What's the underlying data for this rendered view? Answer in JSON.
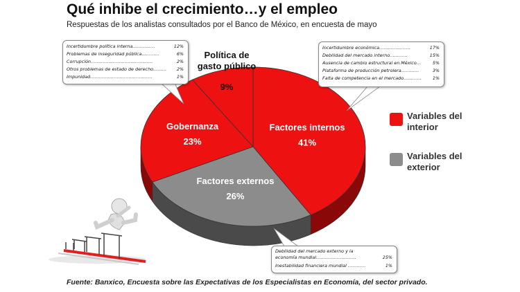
{
  "title": "Qué inhibe el crecimiento…y el empleo",
  "subtitle": "Respuestas de los analistas consultados por el Banco de México, en encuesta de mayo",
  "source": "Fuente: Banxico, Encuesta sobre las Expectativas de los Especialistas en Economía, del sector privado.",
  "colors": {
    "interior": "#ee1111",
    "interior_dark": "#8a0808",
    "exterior": "#8c8c8c",
    "exterior_dark": "#4a4a4a"
  },
  "chart_data": {
    "type": "pie",
    "slices": [
      {
        "label": "Factores internos",
        "value": 41,
        "display": "41%",
        "group": "interior"
      },
      {
        "label": "Factores externos",
        "value": 26,
        "display": "26%",
        "group": "exterior"
      },
      {
        "label": "Gobernanza",
        "value": 23,
        "display": "23%",
        "group": "interior"
      },
      {
        "label": "Política de gasto público",
        "value": 9,
        "display": "9%",
        "group": "interior"
      }
    ],
    "legend": [
      {
        "label": "Variables del interior",
        "group": "interior"
      },
      {
        "label": "Variables del exterior",
        "group": "exterior"
      }
    ],
    "legend_position": "right"
  },
  "callouts": {
    "gobernanza": [
      {
        "label": "Incertidumbre política interna……………",
        "value": "12%"
      },
      {
        "label": "Problemas de inseguridad pública…………",
        "value": "6%"
      },
      {
        "label": "Corrupción……………………………………",
        "value": "2%"
      },
      {
        "label": "Otros problemas de estado de derecho………",
        "value": "2%"
      },
      {
        "label": "Impunidad……………………………………",
        "value": "1%"
      }
    ],
    "internos": [
      {
        "label": "Incertidumbre económica…………………",
        "value": "17%"
      },
      {
        "label": "Debilidad del mercado interno…………",
        "value": "15%"
      },
      {
        "label": "Ausencia de cambio estructural en México…",
        "value": "5%"
      },
      {
        "label": "Plataforma de producción petrolera…………",
        "value": "3%"
      },
      {
        "label": "Falta de competencia en el mercado…………",
        "value": "1%"
      }
    ],
    "externos": [
      {
        "label": "Debilidad del mercado externo y la economía mundial………………………",
        "value": "25%"
      },
      {
        "label": "Inestabilidad financiera mundial …………",
        "value": "1%"
      }
    ]
  }
}
